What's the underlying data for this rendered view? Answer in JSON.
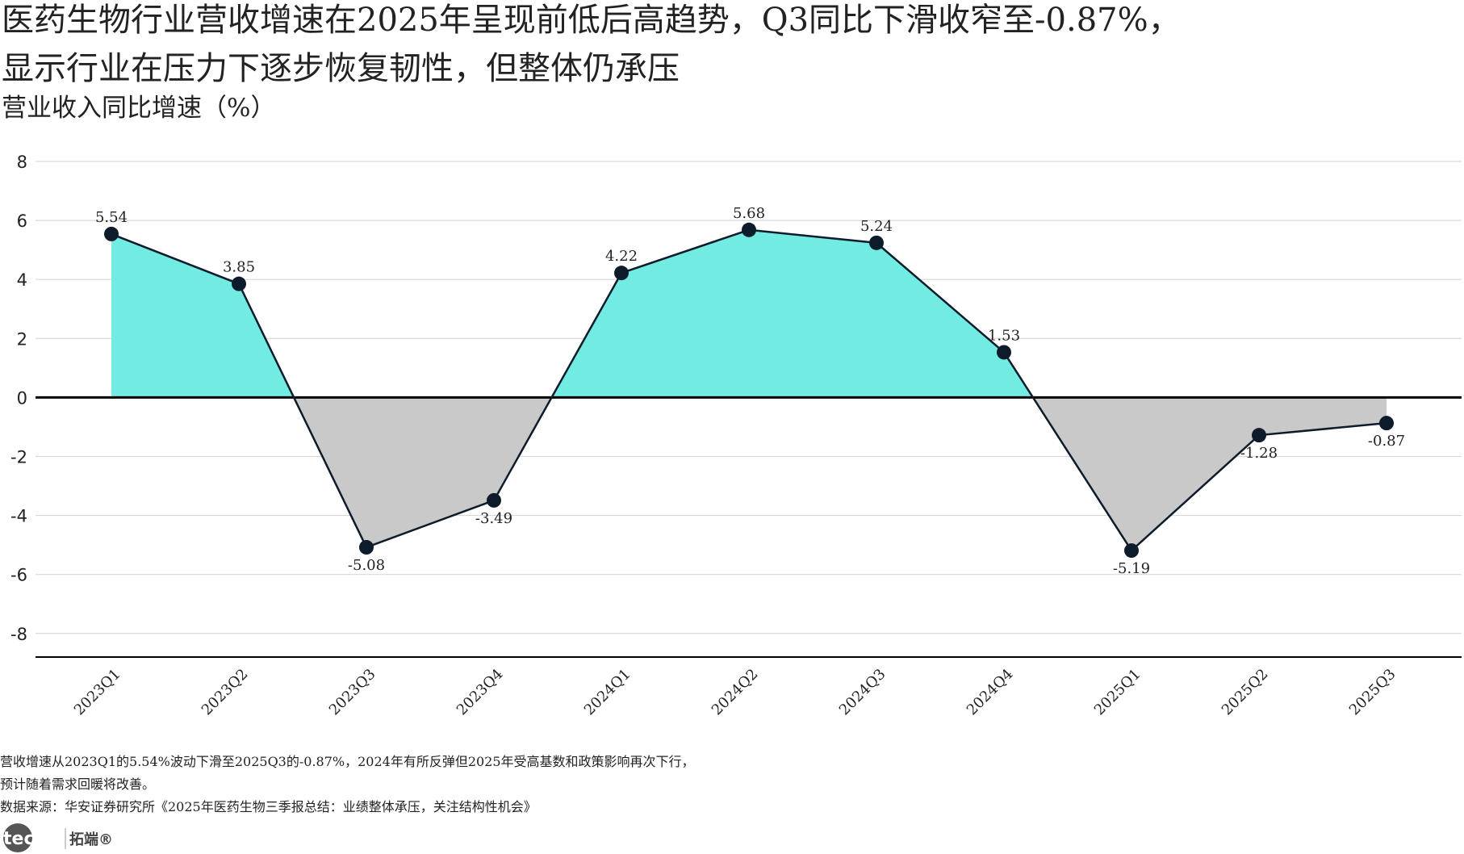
{
  "chart_data": {
    "type": "area",
    "title": [
      "医药生物行业营收增速在2025年呈现前低后高趋势，Q3同比下滑收窄至-0.87%，",
      "显示行业在压力下逐步恢复韧性，但整体仍承压"
    ],
    "y_label": "营业收入同比增速（%）",
    "categories": [
      "2023Q1",
      "2023Q2",
      "2023Q3",
      "2023Q4",
      "2024Q1",
      "2024Q2",
      "2024Q3",
      "2024Q4",
      "2025Q1",
      "2025Q2",
      "2025Q3"
    ],
    "values": [
      5.54,
      3.85,
      -5.08,
      -3.49,
      4.22,
      5.68,
      5.24,
      1.53,
      -5.19,
      -1.28,
      -0.87
    ],
    "colors": {
      "positive": "#72ebe3",
      "negative": "#c9c9c9",
      "line": "#0d1b2a"
    },
    "ylim": [
      -8.8,
      8
    ],
    "yticks": [
      -8,
      -6,
      -4,
      -2,
      0,
      2,
      4,
      6,
      8
    ],
    "grid": true,
    "notes": [
      "营收增速从2023Q1的5.54%波动下滑至2025Q3的-0.87%，2024年有所反弹但2025年受高基数和政策影响再次下行，",
      "预计随着需求回暖将改善。",
      "数据来源：华安证券研究所《2025年医药生物三季报总结：业绩整体承压，关注结构性机会》"
    ],
    "logo": [
      "tecdat",
      "拓端®"
    ]
  }
}
